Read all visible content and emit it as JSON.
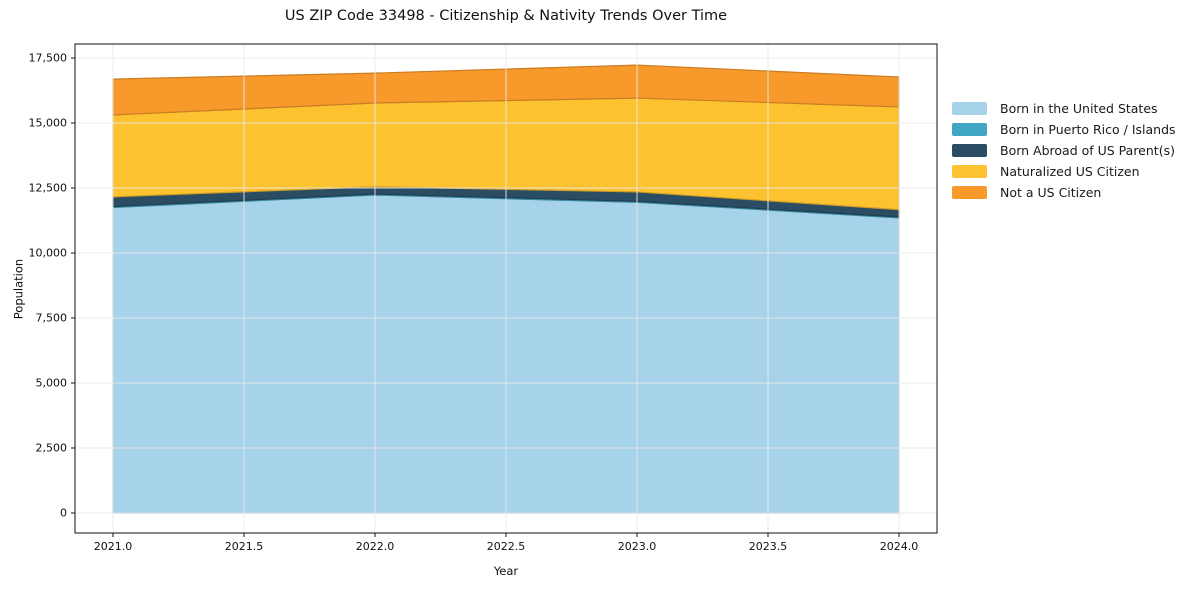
{
  "chart_data": {
    "type": "area",
    "stacked": true,
    "title": "US ZIP Code 33498 - Citizenship & Nativity Trends Over Time",
    "xlabel": "Year",
    "ylabel": "Population",
    "x": [
      2021,
      2022,
      2023,
      2024
    ],
    "series": [
      {
        "name": "Born in the United States",
        "color": "#a6d3ea",
        "values": [
          11750,
          12230,
          11950,
          11350
        ]
      },
      {
        "name": "Born in Puerto Rico / Islands",
        "color": "#41a6c4",
        "values": [
          40,
          40,
          40,
          40
        ]
      },
      {
        "name": "Born Abroad of US Parent(s)",
        "color": "#2a4d63",
        "values": [
          370,
          280,
          360,
          280
        ]
      },
      {
        "name": "Naturalized US Citizen",
        "color": "#fdc22f",
        "values": [
          3150,
          3220,
          3610,
          3950
        ]
      },
      {
        "name": "Not a US Citizen",
        "color": "#f8992b",
        "values": [
          1380,
          1150,
          1270,
          1150
        ]
      }
    ],
    "totals": [
      16690,
      16920,
      17230,
      16770
    ],
    "x_ticks": [
      {
        "value": 2021.0,
        "label": "2021.0"
      },
      {
        "value": 2021.5,
        "label": "2021.5"
      },
      {
        "value": 2022.0,
        "label": "2022.0"
      },
      {
        "value": 2022.5,
        "label": "2022.5"
      },
      {
        "value": 2023.0,
        "label": "2023.0"
      },
      {
        "value": 2023.5,
        "label": "2023.5"
      },
      {
        "value": 2024.0,
        "label": "2024.0"
      }
    ],
    "y_ticks": [
      {
        "value": 0,
        "label": "0"
      },
      {
        "value": 2500,
        "label": "2,500"
      },
      {
        "value": 5000,
        "label": "5,000"
      },
      {
        "value": 7500,
        "label": "7,500"
      },
      {
        "value": 10000,
        "label": "10,000"
      },
      {
        "value": 12500,
        "label": "12,500"
      },
      {
        "value": 15000,
        "label": "15,000"
      },
      {
        "value": 17500,
        "label": "17,500"
      }
    ],
    "xlim": [
      2020.855,
      2024.145
    ],
    "ylim": [
      -770,
      18040
    ],
    "grid": true,
    "grid_color": "#e9e9e9",
    "axis_color": "#262626",
    "legend_position": "right-outside"
  }
}
